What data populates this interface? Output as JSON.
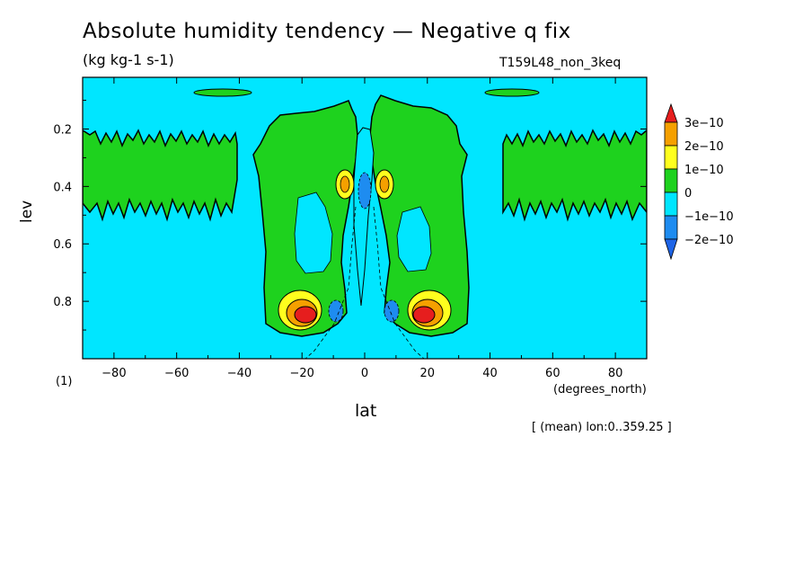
{
  "chart_data": {
    "type": "heatmap",
    "title": "Absolute humidity tendency — Negative q fix",
    "units": "(kg kg-1 s-1)",
    "run_id": "T159L48_non_3keq",
    "xlabel": "lat",
    "x_unit": "(degrees_north)",
    "ylabel": "lev",
    "y_unit": "(1)",
    "note": "[ (mean) lon:0..359.25 ]",
    "xlim": [
      -90,
      90
    ],
    "ylim": [
      1.0,
      0.02
    ],
    "x_ticks": [
      -80,
      -60,
      -40,
      -20,
      0,
      20,
      40,
      60,
      80
    ],
    "x_tick_labels": [
      "−80",
      "−60",
      "−40",
      "−20",
      "0",
      "20",
      "40",
      "60",
      "80"
    ],
    "y_ticks": [
      0.2,
      0.4,
      0.6,
      0.8
    ],
    "y_tick_labels": [
      "0.2",
      "0.4",
      "0.6",
      "0.8"
    ],
    "colorbar": {
      "levels": [
        -2e-10,
        -1e-10,
        0,
        1e-10,
        2e-10,
        3e-10
      ],
      "labels": [
        "3e−10",
        "2e−10",
        "1e−10",
        "0",
        "−1e−10",
        "−2e−10"
      ],
      "colors": [
        "#e61e1e",
        "#f5a000",
        "#ffff1e",
        "#1ed21e",
        "#00e6ff",
        "#1e8cf0",
        "#1e64e6"
      ]
    },
    "background_color": "#00e6ff",
    "regions": [
      {
        "name": "upper-band-west",
        "value_class": "0 to 1e-10",
        "lat": [
          -90,
          -48
        ],
        "lev": [
          0.2,
          0.48
        ]
      },
      {
        "name": "upper-band-east",
        "value_class": "0 to 1e-10",
        "lat": [
          45,
          90
        ],
        "lev": [
          0.2,
          0.48
        ]
      },
      {
        "name": "top-blob-west",
        "value_class": "0 to 1e-10",
        "lat": [
          -58,
          -35
        ],
        "lev": [
          0.04,
          0.06
        ]
      },
      {
        "name": "top-blob-east",
        "value_class": "0 to 1e-10",
        "lat": [
          38,
          58
        ],
        "lev": [
          0.04,
          0.06
        ]
      },
      {
        "name": "tropical-plume-south",
        "value_class": "0 to 1e-10",
        "lat": [
          -35,
          -2
        ],
        "lev": [
          0.06,
          0.93
        ]
      },
      {
        "name": "tropical-plume-north",
        "value_class": "0 to 1e-10",
        "lat": [
          5,
          33
        ],
        "lev": [
          0.06,
          0.93
        ]
      },
      {
        "name": "max-south-lower",
        "value_class": "> 3e-10",
        "lat": [
          -22,
          -14
        ],
        "lev": [
          0.82,
          0.87
        ]
      },
      {
        "name": "max-north-lower",
        "value_class": "> 3e-10",
        "lat": [
          17,
          25
        ],
        "lev": [
          0.82,
          0.87
        ]
      },
      {
        "name": "max-south-mid",
        "value_class": "1e-10 to 2e-10",
        "lat": [
          -9,
          -4
        ],
        "lev": [
          0.35,
          0.42
        ]
      },
      {
        "name": "max-north-mid",
        "value_class": "1e-10 to 2e-10",
        "lat": [
          5,
          10
        ],
        "lev": [
          0.35,
          0.42
        ]
      },
      {
        "name": "min-equator-mid",
        "value_class": "-1e-10 to -2e-10",
        "lat": [
          -2,
          2
        ],
        "lev": [
          0.35,
          0.45
        ]
      },
      {
        "name": "min-south-lower",
        "value_class": "-1e-10 to -2e-10",
        "lat": [
          -12,
          -7
        ],
        "lev": [
          0.8,
          0.87
        ]
      },
      {
        "name": "min-north-lower",
        "value_class": "-1e-10 to -2e-10",
        "lat": [
          6,
          11
        ],
        "lev": [
          0.8,
          0.87
        ]
      }
    ]
  }
}
